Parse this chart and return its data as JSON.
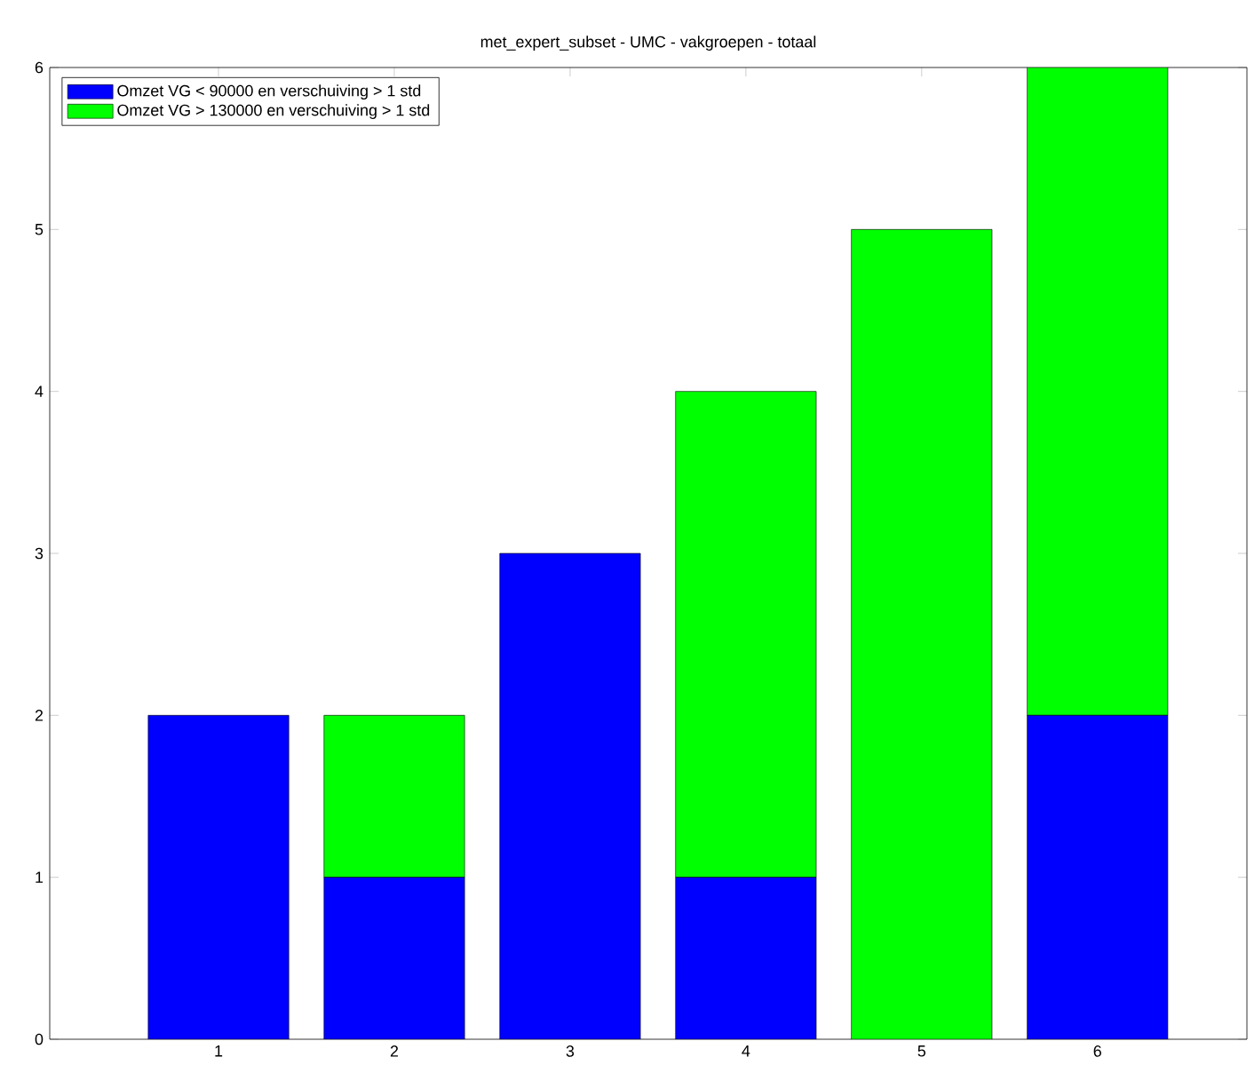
{
  "chart_data": {
    "type": "bar",
    "title": "met_expert_subset - UMC - vakgroepen - totaal",
    "stacked": true,
    "categories": [
      "1",
      "2",
      "3",
      "4",
      "5",
      "6"
    ],
    "series": [
      {
        "name": "Omzet VG < 90000 en verschuiving > 1 std",
        "color": "#0000ff",
        "values": [
          2,
          1,
          3,
          1,
          0,
          2
        ]
      },
      {
        "name": "Omzet VG > 130000 en verschuiving > 1 std",
        "color": "#00ff00",
        "values": [
          0,
          1,
          0,
          3,
          5,
          4
        ]
      }
    ],
    "ylim": [
      0,
      6
    ],
    "yticks": [
      0,
      1,
      2,
      3,
      4,
      5,
      6
    ],
    "legend": "top left",
    "grid": false
  }
}
